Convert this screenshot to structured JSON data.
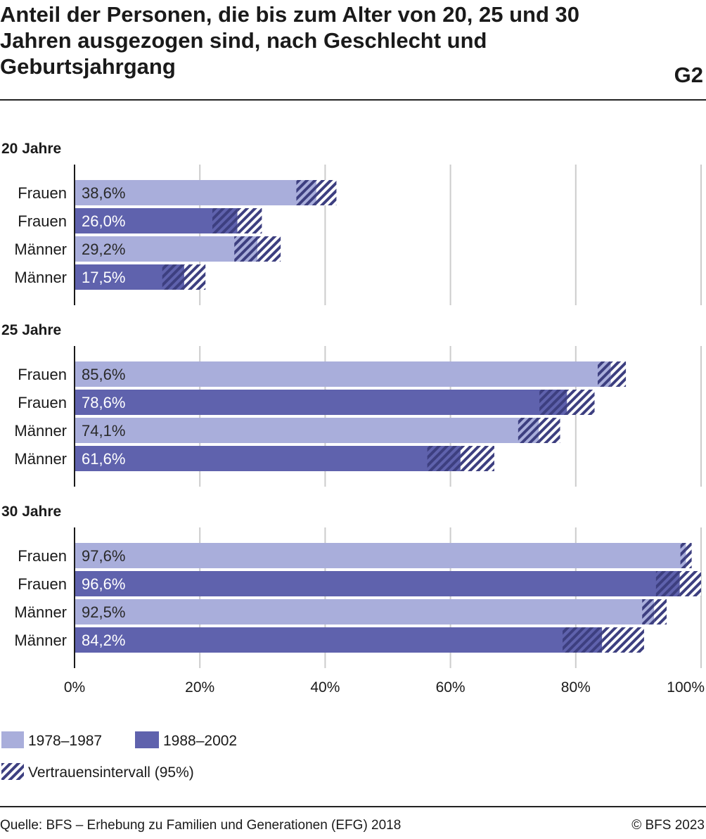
{
  "title": "Anteil der Personen, die bis zum Alter von 20, 25 und 30 Jahren ausgezogen sind, nach Geschlecht und Geburtsjahrgang",
  "figure_id": "G2",
  "source": "Quelle: BFS – Erhebung zu Familien und Generationen (EFG) 2018",
  "copyright": "© BFS 2023",
  "colors": {
    "cohort_1978_1987": "#a9aedb",
    "cohort_1988_2002": "#5f62ad",
    "ci": "#3d3f80",
    "grid": "#cccccc"
  },
  "chart_data": {
    "type": "bar",
    "orientation": "horizontal",
    "xlim": [
      0,
      100
    ],
    "x_ticks": [
      "0%",
      "20%",
      "40%",
      "60%",
      "80%",
      "100%"
    ],
    "legend": [
      {
        "name": "1978–1987",
        "color": "#a9aedb"
      },
      {
        "name": "1988–2002",
        "color": "#5f62ad"
      },
      {
        "name": "Vertrauensintervall (95%)",
        "pattern": "hatch"
      }
    ],
    "panels": [
      {
        "title": "20 Jahre",
        "bars": [
          {
            "label": "Frauen",
            "cohort": "1978–1987",
            "value": 38.6,
            "value_label": "38,6%",
            "ci": [
              35.4,
              41.8
            ]
          },
          {
            "label": "Frauen",
            "cohort": "1988–2002",
            "value": 26.0,
            "value_label": "26,0%",
            "ci": [
              22.0,
              29.9
            ]
          },
          {
            "label": "Männer",
            "cohort": "1978–1987",
            "value": 29.2,
            "value_label": "29,2%",
            "ci": [
              25.5,
              32.9
            ]
          },
          {
            "label": "Männer",
            "cohort": "1988–2002",
            "value": 17.5,
            "value_label": "17,5%",
            "ci": [
              14.0,
              20.9
            ]
          }
        ]
      },
      {
        "title": "25 Jahre",
        "bars": [
          {
            "label": "Frauen",
            "cohort": "1978–1987",
            "value": 85.6,
            "value_label": "85,6%",
            "ci": [
              83.5,
              88.0
            ]
          },
          {
            "label": "Frauen",
            "cohort": "1988–2002",
            "value": 78.6,
            "value_label": "78,6%",
            "ci": [
              74.2,
              83.0
            ]
          },
          {
            "label": "Männer",
            "cohort": "1978–1987",
            "value": 74.1,
            "value_label": "74,1%",
            "ci": [
              70.8,
              77.5
            ]
          },
          {
            "label": "Männer",
            "cohort": "1988–2002",
            "value": 61.6,
            "value_label": "61,6%",
            "ci": [
              56.3,
              67.0
            ]
          }
        ]
      },
      {
        "title": "30 Jahre",
        "bars": [
          {
            "label": "Frauen",
            "cohort": "1978–1987",
            "value": 97.6,
            "value_label": "97,6%",
            "ci": [
              96.7,
              98.5
            ]
          },
          {
            "label": "Frauen",
            "cohort": "1988–2002",
            "value": 96.6,
            "value_label": "96,6%",
            "ci": [
              92.8,
              100.0
            ]
          },
          {
            "label": "Männer",
            "cohort": "1978–1987",
            "value": 92.5,
            "value_label": "92,5%",
            "ci": [
              90.6,
              94.5
            ]
          },
          {
            "label": "Männer",
            "cohort": "1988–2002",
            "value": 84.2,
            "value_label": "84,2%",
            "ci": [
              77.9,
              90.9
            ]
          }
        ]
      }
    ]
  }
}
